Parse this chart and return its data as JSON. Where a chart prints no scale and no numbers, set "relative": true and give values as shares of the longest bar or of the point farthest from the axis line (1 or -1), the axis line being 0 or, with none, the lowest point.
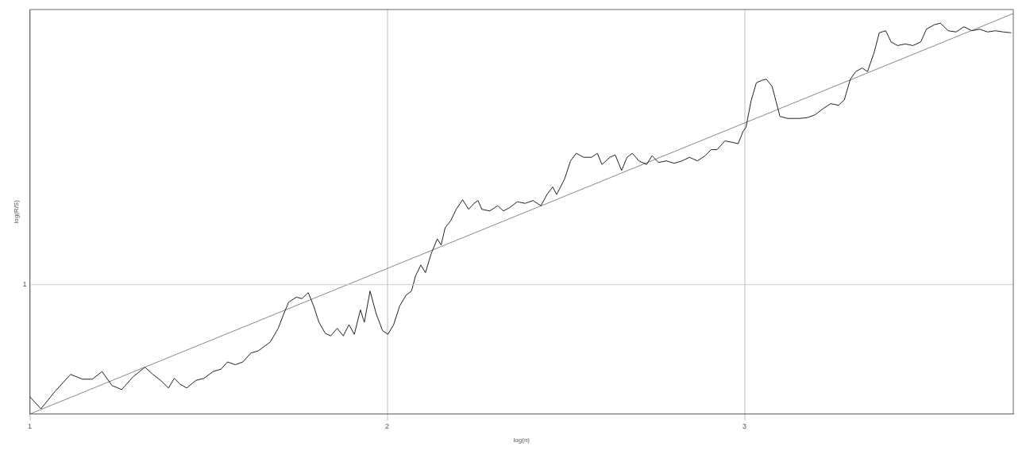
{
  "chart_data": {
    "type": "line",
    "xlabel": "log(n)",
    "ylabel": "log(R/S)",
    "relative": true,
    "xlim": [
      1,
      3.752
    ],
    "xticks": [
      1,
      2,
      3
    ],
    "grid": "x",
    "marker": "none",
    "line_style": "solid",
    "legend": false,
    "ref_lines": [
      {
        "axis": "y",
        "value": 0.323,
        "color": "#cccccc"
      }
    ],
    "annotations": [
      "1"
    ],
    "series": [
      {
        "color": "#222222",
        "x": [
          1.0,
          1.031,
          1.07,
          1.114,
          1.147,
          1.175,
          1.202,
          1.23,
          1.257,
          1.289,
          1.322,
          1.344,
          1.366,
          1.388,
          1.404,
          1.421,
          1.439,
          1.465,
          1.487,
          1.513,
          1.535,
          1.553,
          1.575,
          1.596,
          1.618,
          1.64,
          1.673,
          1.695,
          1.711,
          1.724,
          1.746,
          1.761,
          1.779,
          1.794,
          1.809,
          1.827,
          1.842,
          1.86,
          1.877,
          1.893,
          1.908,
          1.925,
          1.936,
          1.952,
          1.969,
          1.987,
          2.002,
          2.018,
          2.035,
          2.053,
          2.068,
          2.079,
          2.094,
          2.107,
          2.123,
          2.14,
          2.151,
          2.162,
          2.178,
          2.193,
          2.211,
          2.228,
          2.243,
          2.254,
          2.265,
          2.287,
          2.309,
          2.325,
          2.342,
          2.364,
          2.386,
          2.408,
          2.43,
          2.447,
          2.463,
          2.474,
          2.496,
          2.513,
          2.529,
          2.55,
          2.572,
          2.588,
          2.601,
          2.623,
          2.638,
          2.656,
          2.671,
          2.686,
          2.704,
          2.726,
          2.741,
          2.759,
          2.781,
          2.803,
          2.825,
          2.846,
          2.868,
          2.89,
          2.906,
          2.923,
          2.945,
          2.967,
          2.982,
          2.996,
          3.004,
          3.018,
          3.033,
          3.048,
          3.061,
          3.077,
          3.088,
          3.099,
          3.121,
          3.154,
          3.175,
          3.197,
          3.219,
          3.241,
          3.263,
          3.279,
          3.296,
          3.311,
          3.329,
          3.344,
          3.362,
          3.377,
          3.395,
          3.41,
          3.428,
          3.45,
          3.471,
          3.493,
          3.509,
          3.531,
          3.548,
          3.57,
          3.592,
          3.614,
          3.636,
          3.658,
          3.68,
          3.702,
          3.724,
          3.746
        ],
        "values": [
          0.043,
          0.013,
          0.056,
          0.099,
          0.087,
          0.087,
          0.106,
          0.071,
          0.061,
          0.093,
          0.117,
          0.099,
          0.084,
          0.065,
          0.089,
          0.074,
          0.065,
          0.084,
          0.089,
          0.106,
          0.112,
          0.13,
          0.123,
          0.13,
          0.152,
          0.158,
          0.18,
          0.214,
          0.251,
          0.279,
          0.292,
          0.288,
          0.303,
          0.27,
          0.229,
          0.201,
          0.195,
          0.214,
          0.195,
          0.223,
          0.199,
          0.26,
          0.229,
          0.307,
          0.251,
          0.208,
          0.199,
          0.223,
          0.27,
          0.297,
          0.307,
          0.344,
          0.372,
          0.353,
          0.4,
          0.437,
          0.422,
          0.465,
          0.483,
          0.511,
          0.535,
          0.511,
          0.526,
          0.533,
          0.511,
          0.507,
          0.52,
          0.507,
          0.515,
          0.53,
          0.526,
          0.533,
          0.52,
          0.548,
          0.567,
          0.548,
          0.586,
          0.632,
          0.651,
          0.641,
          0.641,
          0.651,
          0.623,
          0.641,
          0.647,
          0.608,
          0.641,
          0.651,
          0.632,
          0.623,
          0.645,
          0.628,
          0.632,
          0.626,
          0.632,
          0.641,
          0.632,
          0.645,
          0.66,
          0.66,
          0.682,
          0.678,
          0.675,
          0.706,
          0.716,
          0.781,
          0.827,
          0.833,
          0.836,
          0.818,
          0.781,
          0.743,
          0.738,
          0.738,
          0.74,
          0.747,
          0.762,
          0.775,
          0.771,
          0.784,
          0.836,
          0.855,
          0.864,
          0.855,
          0.901,
          0.952,
          0.957,
          0.929,
          0.92,
          0.924,
          0.92,
          0.929,
          0.961,
          0.972,
          0.976,
          0.957,
          0.954,
          0.967,
          0.957,
          0.961,
          0.954,
          0.957,
          0.954,
          0.952
        ]
      },
      {
        "color": "#888888",
        "x": [
          1,
          3.752
        ],
        "values": [
          0,
          1
        ]
      }
    ]
  }
}
